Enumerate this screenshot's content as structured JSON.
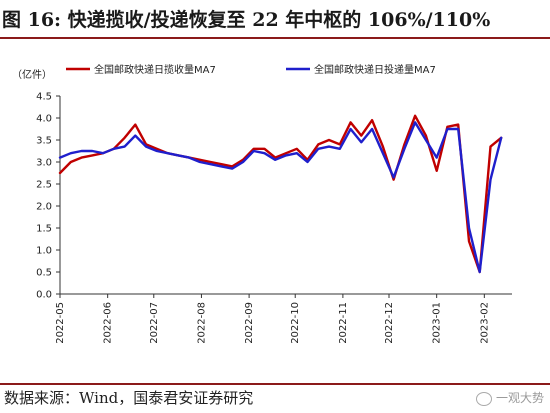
{
  "title": "图 16: 快递揽收/投递恢复至 22 年中枢的 106%/110%",
  "source": "数据来源：Wind，国泰君安证券研究",
  "watermark": "一观大势",
  "chart_data": {
    "type": "line",
    "ylabel": "（亿件）",
    "ylim": [
      0.0,
      4.5
    ],
    "yticks": [
      "0.0",
      "0.5",
      "1.0",
      "1.5",
      "2.0",
      "2.5",
      "3.0",
      "3.5",
      "4.0",
      "4.5"
    ],
    "xticks": [
      "2022-05",
      "2022-06",
      "2022-07",
      "2022-08",
      "2022-09",
      "2022-10",
      "2022-11",
      "2022-12",
      "2023-01",
      "2023-02"
    ],
    "legend_position": "top",
    "grid": false,
    "x": [
      "2022-05-01",
      "2022-05-08",
      "2022-05-15",
      "2022-05-22",
      "2022-05-29",
      "2022-06-05",
      "2022-06-12",
      "2022-06-19",
      "2022-06-26",
      "2022-07-03",
      "2022-07-10",
      "2022-07-17",
      "2022-07-24",
      "2022-07-31",
      "2022-08-07",
      "2022-08-14",
      "2022-08-21",
      "2022-08-28",
      "2022-09-04",
      "2022-09-11",
      "2022-09-18",
      "2022-09-25",
      "2022-10-02",
      "2022-10-09",
      "2022-10-16",
      "2022-10-23",
      "2022-10-30",
      "2022-11-06",
      "2022-11-13",
      "2022-11-20",
      "2022-11-27",
      "2022-12-04",
      "2022-12-11",
      "2022-12-18",
      "2022-12-25",
      "2023-01-01",
      "2023-01-08",
      "2023-01-15",
      "2023-01-22",
      "2023-01-29",
      "2023-02-05",
      "2023-02-12"
    ],
    "series": [
      {
        "name": "全国邮政快递日揽收量MA7",
        "color": "#c00000",
        "values": [
          2.75,
          3.0,
          3.1,
          3.15,
          3.2,
          3.3,
          3.55,
          3.85,
          3.4,
          3.3,
          3.2,
          3.15,
          3.1,
          3.05,
          3.0,
          2.95,
          2.9,
          3.05,
          3.3,
          3.3,
          3.1,
          3.2,
          3.3,
          3.05,
          3.4,
          3.5,
          3.4,
          3.9,
          3.6,
          3.95,
          3.35,
          2.6,
          3.4,
          4.05,
          3.6,
          2.8,
          3.8,
          3.85,
          1.2,
          0.5,
          3.35,
          3.55
        ]
      },
      {
        "name": "全国邮政快递日投递量MA7",
        "color": "#1f1fcc",
        "values": [
          3.1,
          3.2,
          3.25,
          3.25,
          3.2,
          3.3,
          3.35,
          3.6,
          3.35,
          3.25,
          3.2,
          3.15,
          3.1,
          3.0,
          2.95,
          2.9,
          2.85,
          3.0,
          3.25,
          3.2,
          3.05,
          3.15,
          3.2,
          3.0,
          3.3,
          3.35,
          3.3,
          3.75,
          3.45,
          3.75,
          3.2,
          2.65,
          3.3,
          3.9,
          3.5,
          3.1,
          3.75,
          3.75,
          1.5,
          0.5,
          2.6,
          3.55
        ]
      }
    ]
  }
}
